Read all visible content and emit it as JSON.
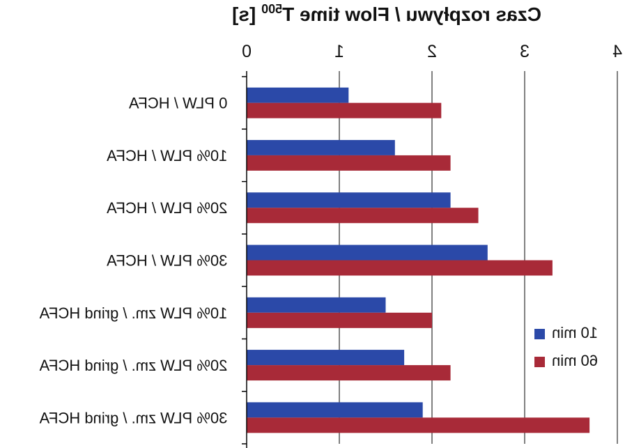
{
  "chart_data": {
    "type": "bar",
    "orientation": "horizontal",
    "mirrored": true,
    "title": "Czas rozpływu / Flow time T500 [s]",
    "title_base": "Czas rozpływu / Flow time T",
    "title_sub": "500",
    "title_tail": " [s]",
    "categories": [
      "0 PLW / HCFA",
      "10% PLW / HCFA",
      "20% PLW / HCFA",
      "30% PLW / HCFA",
      "10% PLW zm. / grind HCFA",
      "20% PLW zm. / grind HCFA",
      "30% PLW zm. / grind HCFA"
    ],
    "xlim": [
      0,
      4
    ],
    "xticks": [
      "0",
      "1",
      "2",
      "3",
      "4"
    ],
    "grid": true,
    "legend_position": "bottom-right",
    "series": [
      {
        "name": "10 min",
        "color": "#2b49a8",
        "values": [
          1.1,
          1.6,
          2.2,
          2.6,
          1.5,
          1.7,
          1.9
        ]
      },
      {
        "name": "60 min",
        "color": "#a82a38",
        "values": [
          2.1,
          2.2,
          2.5,
          3.3,
          2.0,
          2.2,
          3.7
        ]
      }
    ]
  }
}
